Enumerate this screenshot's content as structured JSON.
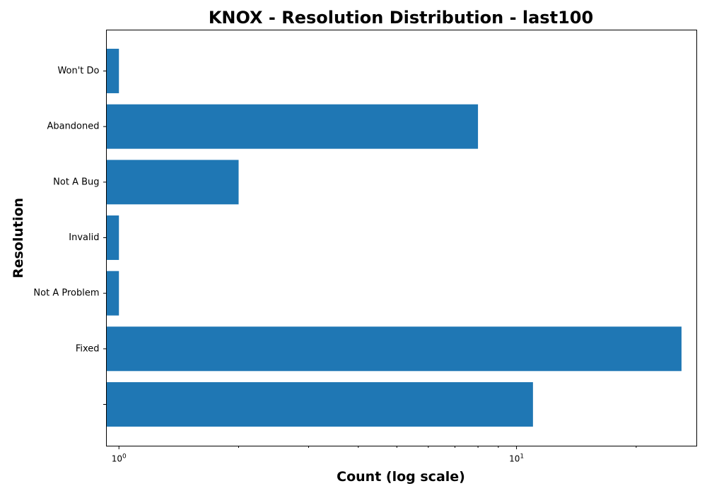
{
  "chart_data": {
    "type": "bar",
    "orientation": "horizontal",
    "title": "KNOX - Resolution Distribution - last100",
    "xlabel": "Count (log scale)",
    "ylabel": "Resolution",
    "xscale": "log",
    "xlim": [
      0.93,
      28.4
    ],
    "x_ticks": [
      {
        "value": 1,
        "base": "10",
        "exp": "0"
      },
      {
        "value": 10,
        "base": "10",
        "exp": "1"
      }
    ],
    "categories": [
      "",
      "Fixed",
      "Not A Problem",
      "Invalid",
      "Not A Bug",
      "Abandoned",
      "Won't Do"
    ],
    "values": [
      11,
      26,
      1,
      1,
      2,
      8,
      1
    ],
    "color": "#1f77b4",
    "grid": false,
    "legend": "none"
  }
}
